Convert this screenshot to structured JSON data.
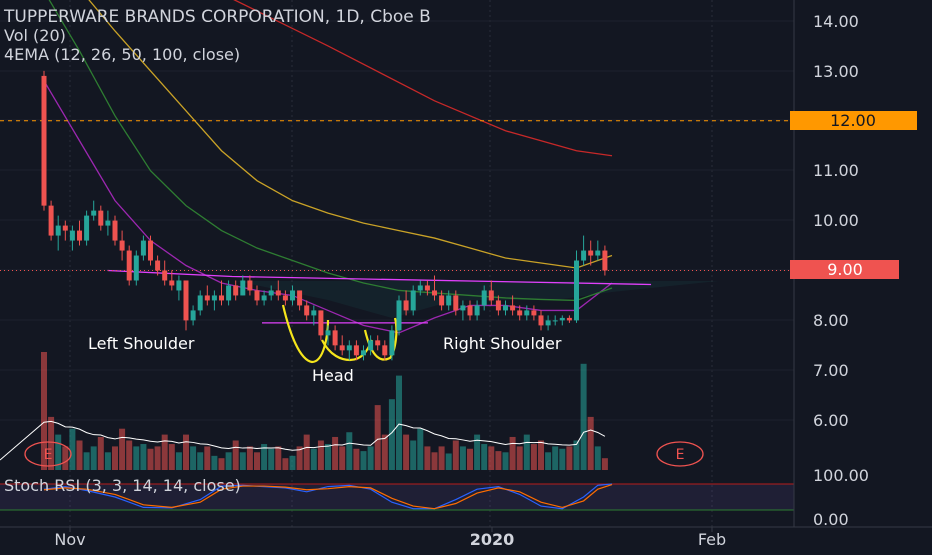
{
  "header": {
    "title": "TUPPERWARE BRANDS CORPORATION, 1D, Cboe B",
    "vol_label": "Vol (20)",
    "ema_label": "4EMA (12, 26, 50, 100, close)"
  },
  "stoch_label": "Stoch RSI (3, 3, 14, 14, close)",
  "price_badges": {
    "line": "12.00",
    "last": "9.00"
  },
  "annotations": {
    "left_shoulder": "Left Shoulder",
    "head": "Head",
    "right_shoulder": "Right Shoulder",
    "earnings_marker": "E"
  },
  "colors": {
    "background": "#131722",
    "up": "#26a69a",
    "down": "#ef5350",
    "ema12": "#9c27b0",
    "ema26": "#2e7d32",
    "ema50": "#c9a227",
    "ema100": "#c62828",
    "neckline": "#e040fb",
    "head_outline": "#f5e51b",
    "badge_line": "#ff9800",
    "badge_last": "#ef5350"
  },
  "chart_data": {
    "type": "candlestick",
    "title": "TUPPERWARE BRANDS CORPORATION, 1D, Cboe B",
    "price_axis": {
      "ylim": [
        5.0,
        14.4
      ],
      "ticks": [
        "14.00",
        "13.00",
        "11.00",
        "10.00",
        "8.00",
        "7.00",
        "6.00"
      ]
    },
    "stoch_axis": {
      "ylim": [
        0,
        100
      ],
      "ticks": [
        "100.00",
        "0.00"
      ]
    },
    "time_axis_ticks": [
      "Nov",
      "2020",
      "Feb"
    ],
    "candles": [
      [
        12.9,
        13.0,
        10.2,
        10.3
      ],
      [
        10.3,
        10.4,
        9.6,
        9.7
      ],
      [
        9.7,
        10.1,
        9.4,
        9.9
      ],
      [
        9.9,
        10.0,
        9.6,
        9.8
      ],
      [
        9.6,
        9.9,
        9.4,
        9.8
      ],
      [
        9.8,
        10.0,
        9.5,
        9.6
      ],
      [
        9.6,
        10.2,
        9.5,
        10.1
      ],
      [
        10.1,
        10.4,
        10.0,
        10.2
      ],
      [
        10.2,
        10.3,
        9.8,
        9.9
      ],
      [
        9.9,
        10.2,
        9.7,
        10.0
      ],
      [
        10.0,
        10.1,
        9.5,
        9.6
      ],
      [
        9.6,
        9.8,
        9.2,
        9.4
      ],
      [
        9.4,
        9.5,
        8.7,
        8.8
      ],
      [
        8.8,
        9.4,
        8.7,
        9.3
      ],
      [
        9.3,
        9.7,
        9.2,
        9.6
      ],
      [
        9.6,
        9.7,
        9.1,
        9.2
      ],
      [
        9.2,
        9.3,
        8.9,
        9.0
      ],
      [
        9.0,
        9.2,
        8.7,
        8.8
      ],
      [
        8.8,
        9.0,
        8.6,
        8.7
      ],
      [
        8.6,
        8.9,
        8.4,
        8.8
      ],
      [
        8.8,
        8.8,
        7.8,
        8.0
      ],
      [
        8.0,
        8.3,
        7.9,
        8.2
      ],
      [
        8.2,
        8.6,
        8.1,
        8.5
      ],
      [
        8.5,
        8.7,
        8.3,
        8.4
      ],
      [
        8.4,
        8.6,
        8.2,
        8.5
      ],
      [
        8.5,
        8.8,
        8.3,
        8.4
      ],
      [
        8.4,
        8.8,
        8.3,
        8.7
      ],
      [
        8.7,
        8.8,
        8.4,
        8.5
      ],
      [
        8.5,
        8.9,
        8.5,
        8.8
      ],
      [
        8.8,
        8.9,
        8.5,
        8.6
      ],
      [
        8.6,
        8.7,
        8.3,
        8.4
      ],
      [
        8.4,
        8.6,
        8.3,
        8.5
      ],
      [
        8.5,
        8.7,
        8.4,
        8.6
      ],
      [
        8.6,
        8.8,
        8.4,
        8.5
      ],
      [
        8.5,
        8.6,
        8.3,
        8.4
      ],
      [
        8.4,
        8.7,
        8.3,
        8.6
      ],
      [
        8.6,
        8.6,
        8.2,
        8.3
      ],
      [
        8.3,
        8.4,
        8.0,
        8.1
      ],
      [
        8.1,
        8.3,
        7.9,
        8.2
      ],
      [
        8.2,
        8.2,
        7.6,
        7.7
      ],
      [
        7.7,
        7.9,
        7.5,
        7.8
      ],
      [
        7.8,
        7.9,
        7.4,
        7.5
      ],
      [
        7.5,
        7.7,
        7.3,
        7.4
      ],
      [
        7.4,
        7.6,
        7.2,
        7.5
      ],
      [
        7.5,
        7.6,
        7.2,
        7.3
      ],
      [
        7.3,
        7.5,
        7.2,
        7.4
      ],
      [
        7.4,
        7.7,
        7.3,
        7.6
      ],
      [
        7.6,
        7.7,
        7.4,
        7.5
      ],
      [
        7.5,
        7.6,
        7.2,
        7.3
      ],
      [
        7.3,
        7.9,
        7.2,
        7.8
      ],
      [
        7.8,
        8.5,
        7.7,
        8.4
      ],
      [
        8.4,
        8.6,
        8.1,
        8.2
      ],
      [
        8.2,
        8.7,
        8.1,
        8.6
      ],
      [
        8.6,
        8.8,
        8.5,
        8.7
      ],
      [
        8.7,
        8.8,
        8.5,
        8.6
      ],
      [
        8.6,
        8.9,
        8.4,
        8.5
      ],
      [
        8.5,
        8.6,
        8.2,
        8.3
      ],
      [
        8.3,
        8.6,
        8.2,
        8.5
      ],
      [
        8.5,
        8.6,
        8.1,
        8.2
      ],
      [
        8.2,
        8.4,
        8.0,
        8.3
      ],
      [
        8.3,
        8.4,
        8.0,
        8.1
      ],
      [
        8.1,
        8.4,
        8.0,
        8.3
      ],
      [
        8.3,
        8.7,
        8.2,
        8.6
      ],
      [
        8.6,
        8.8,
        8.3,
        8.4
      ],
      [
        8.4,
        8.5,
        8.1,
        8.2
      ],
      [
        8.2,
        8.4,
        8.1,
        8.3
      ],
      [
        8.3,
        8.5,
        8.1,
        8.2
      ],
      [
        8.2,
        8.3,
        8.0,
        8.1
      ],
      [
        8.1,
        8.3,
        8.0,
        8.2
      ],
      [
        8.2,
        8.3,
        8.0,
        8.1
      ],
      [
        8.1,
        8.2,
        7.8,
        7.9
      ],
      [
        7.9,
        8.1,
        7.8,
        8.0
      ],
      [
        8.0,
        8.1,
        7.9,
        8.0
      ],
      [
        8.0,
        8.1,
        7.9,
        8.05
      ],
      [
        8.05,
        8.1,
        7.95,
        8.0
      ],
      [
        8.0,
        9.4,
        7.95,
        9.2
      ],
      [
        9.2,
        9.7,
        9.1,
        9.4
      ],
      [
        9.4,
        9.6,
        9.1,
        9.3
      ],
      [
        9.3,
        9.6,
        9.2,
        9.4
      ],
      [
        9.4,
        9.5,
        8.9,
        9.0
      ]
    ],
    "volume_relative": [
      1.0,
      0.45,
      0.3,
      0.2,
      0.35,
      0.25,
      0.15,
      0.2,
      0.28,
      0.15,
      0.2,
      0.35,
      0.25,
      0.2,
      0.22,
      0.18,
      0.2,
      0.3,
      0.22,
      0.15,
      0.3,
      0.2,
      0.15,
      0.2,
      0.12,
      0.1,
      0.15,
      0.25,
      0.15,
      0.2,
      0.15,
      0.22,
      0.18,
      0.2,
      0.1,
      0.12,
      0.2,
      0.3,
      0.18,
      0.25,
      0.22,
      0.28,
      0.2,
      0.32,
      0.18,
      0.16,
      0.2,
      0.55,
      0.3,
      0.6,
      0.8,
      0.3,
      0.25,
      0.35,
      0.2,
      0.15,
      0.2,
      0.14,
      0.25,
      0.2,
      0.18,
      0.3,
      0.22,
      0.2,
      0.16,
      0.15,
      0.28,
      0.2,
      0.3,
      0.22,
      0.25,
      0.15,
      0.2,
      0.18,
      0.2,
      0.25,
      0.9,
      0.45,
      0.2,
      0.1
    ],
    "ema_series": [
      {
        "name": "EMA 12",
        "points": [
          [
            0,
            12.8
          ],
          [
            5,
            11.6
          ],
          [
            10,
            10.4
          ],
          [
            15,
            9.6
          ],
          [
            20,
            9.1
          ],
          [
            25,
            8.75
          ],
          [
            30,
            8.6
          ],
          [
            35,
            8.5
          ],
          [
            40,
            8.2
          ],
          [
            45,
            7.9
          ],
          [
            50,
            7.75
          ],
          [
            55,
            8.05
          ],
          [
            60,
            8.3
          ],
          [
            65,
            8.3
          ],
          [
            70,
            8.2
          ],
          [
            75,
            8.2
          ],
          [
            80,
            8.75
          ]
        ]
      },
      {
        "name": "EMA 26",
        "points": [
          [
            0,
            14.6
          ],
          [
            5,
            13.4
          ],
          [
            10,
            12.1
          ],
          [
            15,
            11.0
          ],
          [
            20,
            10.3
          ],
          [
            25,
            9.8
          ],
          [
            30,
            9.45
          ],
          [
            35,
            9.2
          ],
          [
            40,
            8.95
          ],
          [
            45,
            8.75
          ],
          [
            50,
            8.6
          ],
          [
            55,
            8.55
          ],
          [
            60,
            8.5
          ],
          [
            65,
            8.45
          ],
          [
            70,
            8.42
          ],
          [
            75,
            8.4
          ],
          [
            80,
            8.65
          ]
        ]
      },
      {
        "name": "EMA 50",
        "points": [
          [
            0,
            15.5
          ],
          [
            10,
            13.8
          ],
          [
            20,
            12.2
          ],
          [
            25,
            11.4
          ],
          [
            30,
            10.8
          ],
          [
            35,
            10.4
          ],
          [
            40,
            10.15
          ],
          [
            45,
            9.95
          ],
          [
            50,
            9.8
          ],
          [
            55,
            9.65
          ],
          [
            60,
            9.45
          ],
          [
            65,
            9.25
          ],
          [
            70,
            9.15
          ],
          [
            75,
            9.05
          ],
          [
            80,
            9.3
          ]
        ]
      },
      {
        "name": "EMA 100",
        "points": [
          [
            0,
            16.6
          ],
          [
            20,
            14.9
          ],
          [
            40,
            13.5
          ],
          [
            55,
            12.4
          ],
          [
            65,
            11.8
          ],
          [
            75,
            11.4
          ],
          [
            80,
            11.3
          ]
        ]
      }
    ],
    "stoch_k": [
      [
        0,
        80
      ],
      [
        3,
        90
      ],
      [
        6,
        75
      ],
      [
        10,
        50
      ],
      [
        14,
        10
      ],
      [
        18,
        8
      ],
      [
        22,
        40
      ],
      [
        25,
        92
      ],
      [
        28,
        95
      ],
      [
        31,
        90
      ],
      [
        34,
        85
      ],
      [
        37,
        70
      ],
      [
        40,
        90
      ],
      [
        43,
        95
      ],
      [
        46,
        80
      ],
      [
        49,
        30
      ],
      [
        52,
        5
      ],
      [
        55,
        5
      ],
      [
        58,
        40
      ],
      [
        61,
        80
      ],
      [
        64,
        90
      ],
      [
        67,
        60
      ],
      [
        70,
        15
      ],
      [
        73,
        5
      ],
      [
        76,
        50
      ],
      [
        78,
        95
      ],
      [
        80,
        100
      ]
    ],
    "stoch_d": [
      [
        0,
        78
      ],
      [
        3,
        85
      ],
      [
        6,
        80
      ],
      [
        10,
        60
      ],
      [
        14,
        20
      ],
      [
        18,
        10
      ],
      [
        22,
        30
      ],
      [
        25,
        80
      ],
      [
        28,
        92
      ],
      [
        31,
        92
      ],
      [
        34,
        88
      ],
      [
        37,
        78
      ],
      [
        40,
        82
      ],
      [
        43,
        90
      ],
      [
        46,
        85
      ],
      [
        49,
        45
      ],
      [
        52,
        15
      ],
      [
        55,
        5
      ],
      [
        58,
        25
      ],
      [
        61,
        65
      ],
      [
        64,
        85
      ],
      [
        67,
        70
      ],
      [
        70,
        30
      ],
      [
        73,
        10
      ],
      [
        76,
        35
      ],
      [
        78,
        80
      ],
      [
        80,
        98
      ]
    ],
    "neckline_points": [
      [
        8.95,
        9.0
      ],
      [
        26.5,
        8.88
      ],
      [
        85.5,
        8.72
      ]
    ],
    "head_line": [
      7.95
    ],
    "price_lines": [
      12.0,
      9.0
    ]
  }
}
